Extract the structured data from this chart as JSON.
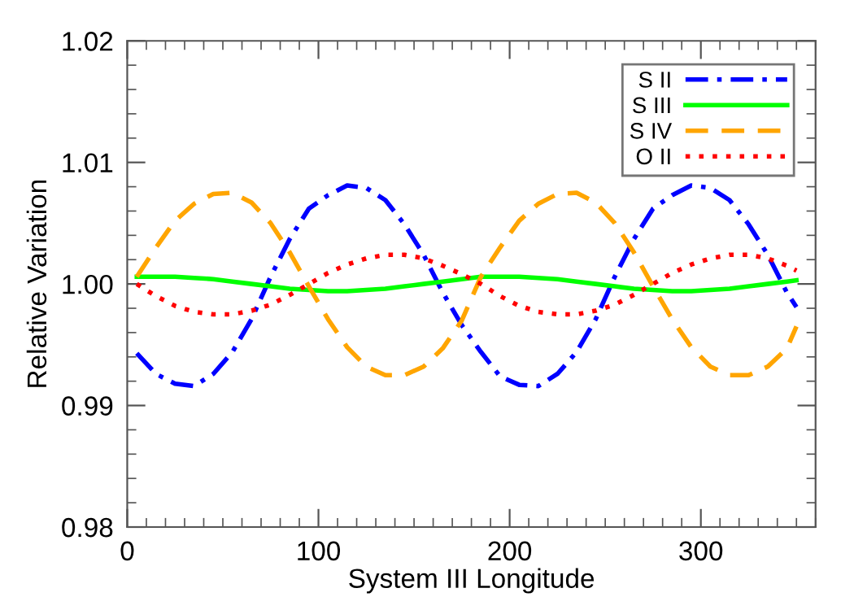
{
  "chart_data": {
    "type": "line",
    "xlabel": "System III Longitude",
    "ylabel": "Relative Variation",
    "x": [
      5,
      15,
      25,
      35,
      45,
      55,
      65,
      75,
      85,
      95,
      105,
      115,
      125,
      135,
      145,
      155,
      165,
      175,
      185,
      195,
      205,
      215,
      225,
      235,
      245,
      255,
      265,
      275,
      285,
      295,
      305,
      315,
      325,
      335,
      345,
      350
    ],
    "series": [
      {
        "name": "S II",
        "color": "#0000ff",
        "line_style": "dashdot",
        "values": [
          0.9943,
          0.9926,
          0.9918,
          0.9916,
          0.9926,
          0.9944,
          0.9971,
          1.0006,
          1.0037,
          1.0062,
          1.0073,
          1.0081,
          1.0079,
          1.0069,
          1.0049,
          1.0024,
          0.9993,
          0.9966,
          0.9944,
          0.9924,
          0.9917,
          0.9916,
          0.9926,
          0.9944,
          0.9971,
          1.0006,
          1.0037,
          1.0062,
          1.0073,
          1.0081,
          1.0079,
          1.0069,
          1.0049,
          1.0024,
          0.9993,
          0.9981
        ]
      },
      {
        "name": "S III",
        "color": "#00ff00",
        "line_style": "solid",
        "values": [
          1.0006,
          1.0006,
          1.0006,
          1.0005,
          1.0004,
          1.0002,
          1.0,
          0.9998,
          0.9996,
          0.9995,
          0.9994,
          0.9994,
          0.9995,
          0.9996,
          0.9998,
          1.0,
          1.0002,
          1.0004,
          1.0006,
          1.0006,
          1.0006,
          1.0005,
          1.0004,
          1.0002,
          1.0,
          0.9998,
          0.9996,
          0.9995,
          0.9994,
          0.9994,
          0.9995,
          0.9996,
          0.9998,
          1.0,
          1.0002,
          1.0003
        ]
      },
      {
        "name": "S IV",
        "color": "#ffa500",
        "line_style": "dashed",
        "values": [
          1.0006,
          1.003,
          1.0052,
          1.0066,
          1.0074,
          1.0075,
          1.0067,
          1.005,
          1.0026,
          0.9998,
          0.9971,
          0.9948,
          0.9932,
          0.9925,
          0.9925,
          0.9932,
          0.9947,
          0.997,
          1.0006,
          1.003,
          1.0052,
          1.0066,
          1.0074,
          1.0075,
          1.0067,
          1.005,
          1.0026,
          0.9998,
          0.9971,
          0.9948,
          0.9932,
          0.9925,
          0.9925,
          0.9932,
          0.9947,
          0.9965
        ]
      },
      {
        "name": "O II",
        "color": "#ff0000",
        "line_style": "dotted",
        "values": [
          1.0,
          0.999,
          0.9982,
          0.9977,
          0.9975,
          0.9975,
          0.9978,
          0.9983,
          0.9991,
          1.0,
          1.0009,
          1.0016,
          1.0021,
          1.0024,
          1.0024,
          1.0021,
          1.0015,
          1.0008,
          1.0,
          0.999,
          0.9982,
          0.9977,
          0.9975,
          0.9975,
          0.9978,
          0.9983,
          0.9991,
          1.0,
          1.0009,
          1.0016,
          1.0021,
          1.0024,
          1.0024,
          1.0021,
          1.0015,
          1.0011
        ]
      }
    ],
    "xlim": [
      0,
      360
    ],
    "xticks": [
      0,
      100,
      200,
      300
    ],
    "ylim": [
      0.98,
      1.02
    ],
    "yticks": [
      {
        "value": 0.98,
        "label": "0.98"
      },
      {
        "value": 0.99,
        "label": "0.99"
      },
      {
        "value": 1.0,
        "label": "1.00"
      },
      {
        "value": 1.01,
        "label": "1.01"
      },
      {
        "value": 1.02,
        "label": "1.02"
      }
    ],
    "grid": false,
    "legend": "top right",
    "marker": "none"
  }
}
